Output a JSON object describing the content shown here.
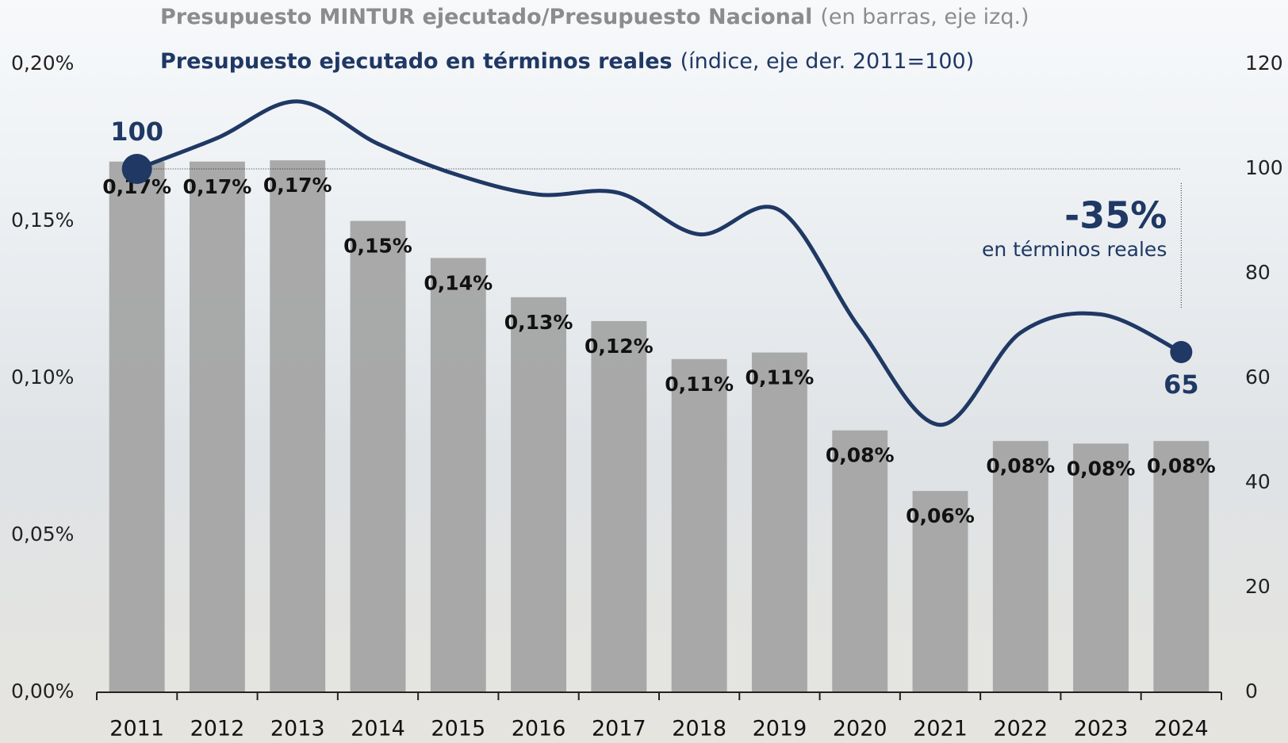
{
  "chart_data": {
    "type": "bar_line",
    "categories": [
      "2011",
      "2012",
      "2013",
      "2014",
      "2015",
      "2016",
      "2017",
      "2018",
      "2019",
      "2020",
      "2021",
      "2022",
      "2023",
      "2024"
    ],
    "series": [
      {
        "name": "Presupuesto MINTUR ejecutado/Presupuesto Nacional",
        "name_detail": "(en barras, eje izq.)",
        "type": "bar",
        "color": "#a3a3a3",
        "values": [
          0.169,
          0.169,
          0.1694,
          0.1501,
          0.1383,
          0.1258,
          0.1182,
          0.1061,
          0.1082,
          0.0834,
          0.0641,
          0.08,
          0.0792,
          0.08
        ],
        "value_labels": [
          "0,17%",
          "0,17%",
          "0,17%",
          "0,15%",
          "0,14%",
          "0,13%",
          "0,12%",
          "0,11%",
          "0,11%",
          "0,08%",
          "0,06%",
          "0,08%",
          "0,08%",
          "0,08%"
        ]
      },
      {
        "name": "Presupuesto ejecutado en términos reales",
        "name_detail": "(índice, eje der. 2011=100)",
        "type": "line",
        "axis": "y2",
        "color": "#1f3864",
        "values": [
          100,
          105.9,
          112.9,
          104.8,
          98.8,
          95.1,
          95.4,
          87.5,
          92.1,
          69.5,
          51.1,
          68.7,
          72.2,
          65
        ]
      }
    ],
    "ylim": [
      0,
      0.2
    ],
    "yticks": [
      {
        "value": 0,
        "label": "0,00%"
      },
      {
        "value": 0.05,
        "label": "0,05%"
      },
      {
        "value": 0.1,
        "label": "0,10%"
      },
      {
        "value": 0.15,
        "label": "0,15%"
      },
      {
        "value": 0.2,
        "label": "0,20%"
      }
    ],
    "y2lim": [
      0,
      120
    ],
    "y2ticks": [
      0,
      20,
      40,
      60,
      80,
      100,
      120
    ],
    "annotation": {
      "text": "-35%",
      "subtext": "en términos reales"
    },
    "grid": false
  }
}
